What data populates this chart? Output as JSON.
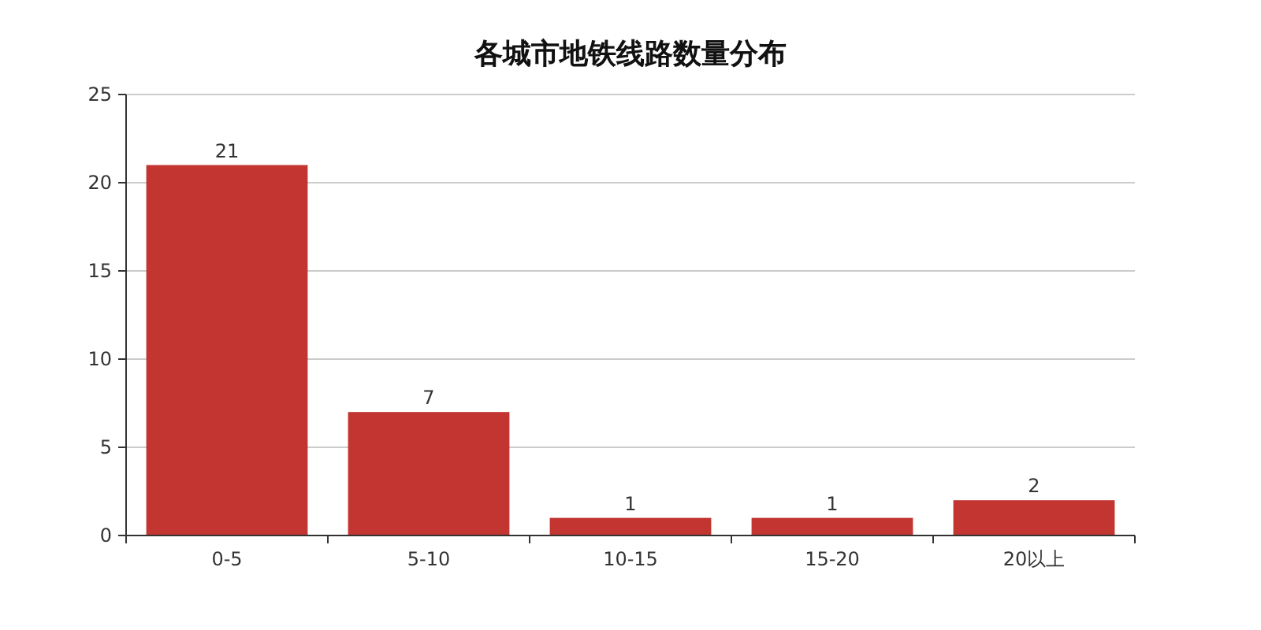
{
  "chart_data": {
    "type": "bar",
    "title": "各城市地铁线路数量分布",
    "categories": [
      "0-5",
      "5-10",
      "10-15",
      "15-20",
      "20以上"
    ],
    "values": [
      21,
      7,
      1,
      1,
      2
    ],
    "color": "#c23531",
    "ylim": [
      0,
      25
    ],
    "yticks": [
      0,
      5,
      10,
      15,
      20,
      25
    ],
    "grid": "y",
    "data_labels": true
  }
}
